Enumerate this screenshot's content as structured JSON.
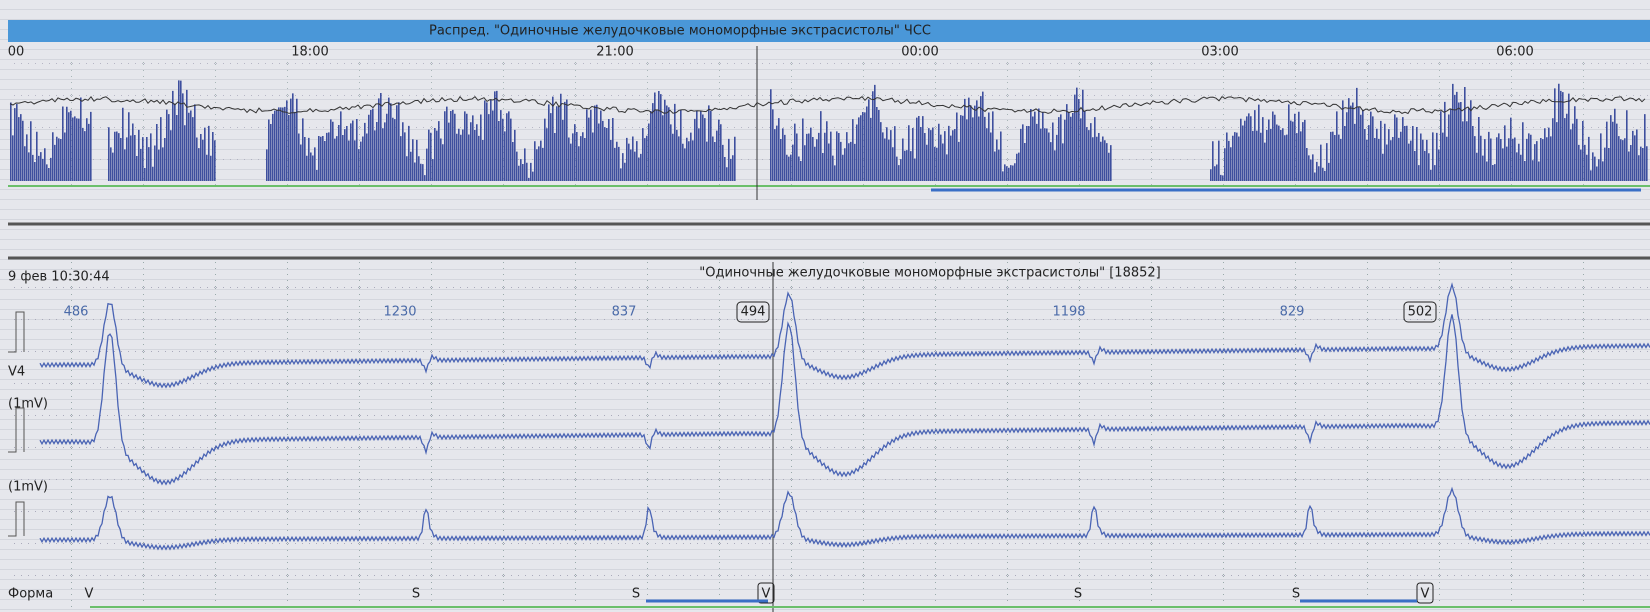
{
  "header": {
    "title": "Распред. \"Одиночные желудочковые мономорфные экстрасистолы\" ЧСС",
    "times": [
      "00",
      "18:00",
      "21:00",
      "00:00",
      "03:00",
      "06:00"
    ]
  },
  "strip": {
    "datetime": "9 фев 10:30:44",
    "title": "\"Одиночные желудочковые мономорфные экстрасистолы\" [18852]",
    "intervals": [
      486,
      1230,
      837,
      494,
      1198,
      829,
      502
    ],
    "channels": [
      "V4",
      "(1mV)",
      "(1mV)"
    ],
    "form_label": "Форма",
    "beats": [
      "V",
      "S",
      "S",
      "V",
      "S",
      "S",
      "V"
    ]
  }
}
